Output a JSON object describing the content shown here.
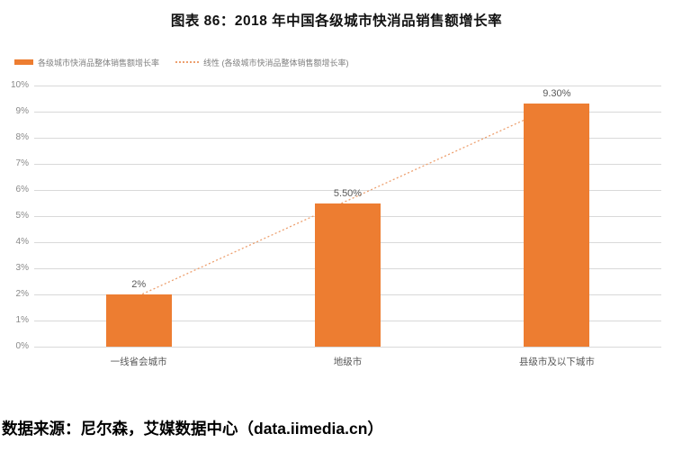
{
  "title": "图表 86：2018 年中国各级城市快消品销售额增长率",
  "legend": {
    "series": "各级城市快消品整体销售额增长率",
    "trend": "线性 (各级城市快消品整体销售额增长率)"
  },
  "source": "数据来源：尼尔森，艾媒数据中心（data.iimedia.cn）",
  "colors": {
    "bar": "#ED7D31",
    "trendline": "#EDA06F",
    "gridline": "#D9D9D9",
    "tick_text": "#8a8a8a",
    "label_text": "#595959",
    "legend_text": "#7f7f7f",
    "title_text": "#111111"
  },
  "chart_data": {
    "type": "bar",
    "title": "图表 86：2018 年中国各级城市快消品销售额增长率",
    "categories": [
      "一线省会城市",
      "地级市",
      "县级市及以下城市"
    ],
    "series": [
      {
        "name": "各级城市快消品整体销售额增长率",
        "values": [
          2.0,
          5.5,
          9.3
        ],
        "data_labels": [
          "2%",
          "5.50%",
          "9.30%"
        ]
      }
    ],
    "trendline": {
      "type": "linear",
      "name": "线性 (各级城市快消品整体销售额增长率)",
      "fitted_endpoints_pct": [
        1.95,
        9.25
      ]
    },
    "xlabel": "",
    "ylabel": "",
    "ylim": [
      0,
      10
    ],
    "yticks": [
      "0%",
      "1%",
      "2%",
      "3%",
      "4%",
      "5%",
      "6%",
      "7%",
      "8%",
      "9%",
      "10%"
    ],
    "grid": true,
    "legend_position": "top-left"
  }
}
